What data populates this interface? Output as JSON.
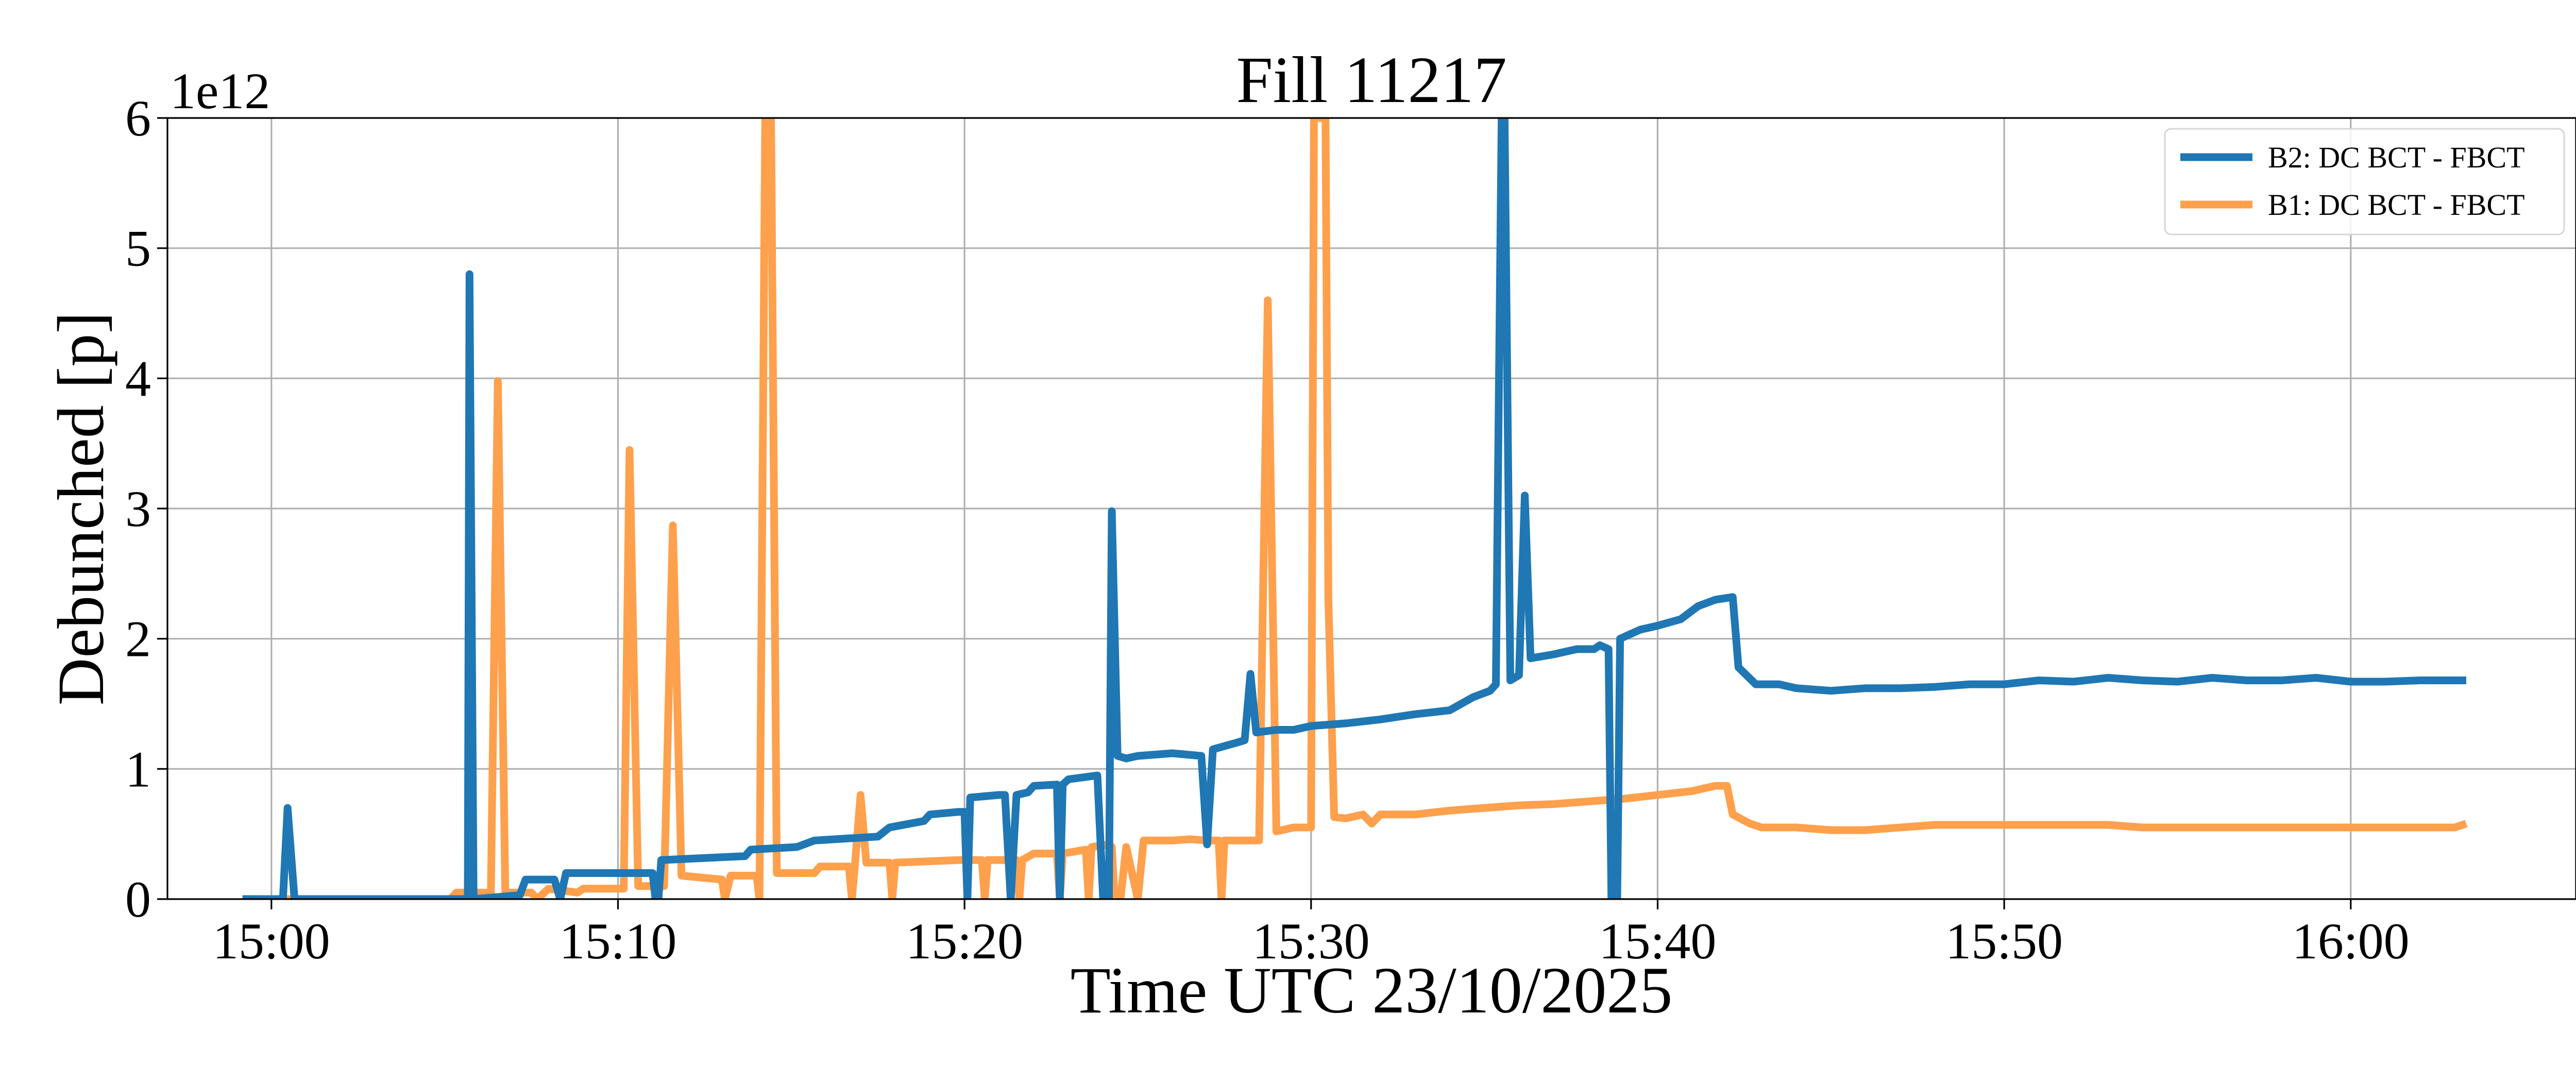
{
  "chart_data": {
    "type": "line",
    "title": "Fill 11217",
    "xlabel": "Time UTC 23/10/2025",
    "ylabel": "Debunched [p]",
    "y_offset_label": "1e12",
    "y_scale_unit": 1000000000000.0,
    "xlim": [
      "14:57:00",
      "16:06:30"
    ],
    "ylim": [
      0,
      6
    ],
    "x_ticks": [
      "15:00",
      "15:10",
      "15:20",
      "15:30",
      "15:40",
      "15:50",
      "16:00"
    ],
    "y_ticks": [
      0,
      1,
      2,
      3,
      4,
      5,
      6
    ],
    "grid": true,
    "legend_position": "top-right",
    "series": [
      {
        "name": "B2: DC BCT - FBCT",
        "color": "#1f77b4",
        "points": [
          [
            "14:59:10",
            0
          ],
          [
            "15:00:20",
            0
          ],
          [
            "15:00:28",
            0.7
          ],
          [
            "15:00:40",
            0
          ],
          [
            "15:05:15",
            0
          ],
          [
            "15:05:40",
            0
          ],
          [
            "15:05:43",
            4.8
          ],
          [
            "15:05:50",
            0
          ],
          [
            "15:07:10",
            0.03
          ],
          [
            "15:07:20",
            0.15
          ],
          [
            "15:08:10",
            0.15
          ],
          [
            "15:08:20",
            0
          ],
          [
            "15:08:30",
            0.2
          ],
          [
            "15:11:00",
            0.2
          ],
          [
            "15:11:05",
            0
          ],
          [
            "15:11:10",
            0
          ],
          [
            "15:11:15",
            0.3
          ],
          [
            "15:13:40",
            0.33
          ],
          [
            "15:13:50",
            0.38
          ],
          [
            "15:15:10",
            0.4
          ],
          [
            "15:15:40",
            0.45
          ],
          [
            "15:17:30",
            0.48
          ],
          [
            "15:17:50",
            0.55
          ],
          [
            "15:18:50",
            0.6
          ],
          [
            "15:19:00",
            0.65
          ],
          [
            "15:19:50",
            0.67
          ],
          [
            "15:20:00",
            0.67
          ],
          [
            "15:20:05",
            0
          ],
          [
            "15:20:10",
            0.78
          ],
          [
            "15:21:00",
            0.8
          ],
          [
            "15:21:10",
            0.8
          ],
          [
            "15:21:20",
            0
          ],
          [
            "15:21:30",
            0.8
          ],
          [
            "15:21:50",
            0.82
          ],
          [
            "15:22:00",
            0.87
          ],
          [
            "15:22:40",
            0.88
          ],
          [
            "15:22:45",
            0
          ],
          [
            "15:22:50",
            0.88
          ],
          [
            "15:23:00",
            0.92
          ],
          [
            "15:23:50",
            0.95
          ],
          [
            "15:24:00",
            0
          ],
          [
            "15:24:10",
            0
          ],
          [
            "15:24:15",
            2.98
          ],
          [
            "15:24:25",
            1.1
          ],
          [
            "15:24:40",
            1.08
          ],
          [
            "15:25:00",
            1.1
          ],
          [
            "15:26:00",
            1.12
          ],
          [
            "15:26:50",
            1.1
          ],
          [
            "15:27:00",
            0.42
          ],
          [
            "15:27:10",
            1.15
          ],
          [
            "15:27:50",
            1.2
          ],
          [
            "15:28:05",
            1.22
          ],
          [
            "15:28:15",
            1.73
          ],
          [
            "15:28:25",
            1.28
          ],
          [
            "15:29:00",
            1.3
          ],
          [
            "15:29:30",
            1.3
          ],
          [
            "15:30:00",
            1.33
          ],
          [
            "15:31:00",
            1.35
          ],
          [
            "15:32:00",
            1.38
          ],
          [
            "15:33:00",
            1.42
          ],
          [
            "15:34:00",
            1.45
          ],
          [
            "15:34:40",
            1.55
          ],
          [
            "15:35:10",
            1.6
          ],
          [
            "15:35:20",
            1.65
          ],
          [
            "15:35:30",
            6
          ],
          [
            "15:35:35",
            6
          ],
          [
            "15:35:45",
            1.68
          ],
          [
            "15:36:00",
            1.72
          ],
          [
            "15:36:10",
            3.1
          ],
          [
            "15:36:20",
            1.85
          ],
          [
            "15:37:00",
            1.88
          ],
          [
            "15:37:40",
            1.92
          ],
          [
            "15:38:10",
            1.92
          ],
          [
            "15:38:20",
            1.95
          ],
          [
            "15:38:35",
            1.92
          ],
          [
            "15:38:40",
            0
          ],
          [
            "15:38:50",
            0
          ],
          [
            "15:38:55",
            2.0
          ],
          [
            "15:39:30",
            2.07
          ],
          [
            "15:40:00",
            2.1
          ],
          [
            "15:40:40",
            2.15
          ],
          [
            "15:41:10",
            2.25
          ],
          [
            "15:41:40",
            2.3
          ],
          [
            "15:42:10",
            2.32
          ],
          [
            "15:42:20",
            1.78
          ],
          [
            "15:42:50",
            1.65
          ],
          [
            "15:43:30",
            1.65
          ],
          [
            "15:44:00",
            1.62
          ],
          [
            "15:45:00",
            1.6
          ],
          [
            "15:46:00",
            1.62
          ],
          [
            "15:47:00",
            1.62
          ],
          [
            "15:48:00",
            1.63
          ],
          [
            "15:49:00",
            1.65
          ],
          [
            "15:50:00",
            1.65
          ],
          [
            "15:51:00",
            1.68
          ],
          [
            "15:52:00",
            1.67
          ],
          [
            "15:53:00",
            1.7
          ],
          [
            "15:54:00",
            1.68
          ],
          [
            "15:55:00",
            1.67
          ],
          [
            "15:56:00",
            1.7
          ],
          [
            "15:57:00",
            1.68
          ],
          [
            "15:58:00",
            1.68
          ],
          [
            "15:59:00",
            1.7
          ],
          [
            "16:00:00",
            1.67
          ],
          [
            "16:01:00",
            1.67
          ],
          [
            "16:02:00",
            1.68
          ],
          [
            "16:03:00",
            1.68
          ],
          [
            "16:03:20",
            1.68
          ]
        ]
      },
      {
        "name": "B1: DC BCT - FBCT",
        "color": "#ffa04d",
        "points": [
          [
            "14:59:10",
            0
          ],
          [
            "15:05:10",
            0
          ],
          [
            "15:05:20",
            0.05
          ],
          [
            "15:06:20",
            0.05
          ],
          [
            "15:06:32",
            3.98
          ],
          [
            "15:06:45",
            0.05
          ],
          [
            "15:07:30",
            0.05
          ],
          [
            "15:07:40",
            0
          ],
          [
            "15:08:00",
            0.08
          ],
          [
            "15:08:50",
            0.05
          ],
          [
            "15:09:00",
            0.08
          ],
          [
            "15:10:10",
            0.08
          ],
          [
            "15:10:20",
            3.45
          ],
          [
            "15:10:35",
            0.1
          ],
          [
            "15:11:20",
            0.1
          ],
          [
            "15:11:35",
            2.87
          ],
          [
            "15:11:50",
            0.18
          ],
          [
            "15:13:00",
            0.15
          ],
          [
            "15:13:05",
            0
          ],
          [
            "15:13:15",
            0.18
          ],
          [
            "15:14:00",
            0.18
          ],
          [
            "15:14:05",
            0
          ],
          [
            "15:14:15",
            6
          ],
          [
            "15:14:25",
            6
          ],
          [
            "15:14:35",
            0.2
          ],
          [
            "15:15:40",
            0.2
          ],
          [
            "15:15:50",
            0.25
          ],
          [
            "15:16:40",
            0.25
          ],
          [
            "15:16:45",
            0
          ],
          [
            "15:16:50",
            0.25
          ],
          [
            "15:17:00",
            0.8
          ],
          [
            "15:17:10",
            0.28
          ],
          [
            "15:17:50",
            0.28
          ],
          [
            "15:17:55",
            0
          ],
          [
            "15:18:00",
            0.28
          ],
          [
            "15:19:50",
            0.3
          ],
          [
            "15:20:30",
            0.3
          ],
          [
            "15:20:35",
            0
          ],
          [
            "15:20:40",
            0.3
          ],
          [
            "15:21:30",
            0.3
          ],
          [
            "15:21:35",
            0
          ],
          [
            "15:21:40",
            0.3
          ],
          [
            "15:22:00",
            0.35
          ],
          [
            "15:22:40",
            0.35
          ],
          [
            "15:22:45",
            0
          ],
          [
            "15:22:50",
            0.35
          ],
          [
            "15:23:30",
            0.38
          ],
          [
            "15:23:35",
            0
          ],
          [
            "15:23:40",
            0.4
          ],
          [
            "15:24:10",
            0.42
          ],
          [
            "15:24:15",
            0.4
          ],
          [
            "15:24:20",
            0
          ],
          [
            "15:24:30",
            0
          ],
          [
            "15:24:40",
            0.4
          ],
          [
            "15:25:00",
            0
          ],
          [
            "15:25:10",
            0.45
          ],
          [
            "15:26:00",
            0.45
          ],
          [
            "15:26:30",
            0.46
          ],
          [
            "15:27:00",
            0.45
          ],
          [
            "15:27:20",
            0.45
          ],
          [
            "15:27:25",
            0
          ],
          [
            "15:27:30",
            0.45
          ],
          [
            "15:28:30",
            0.45
          ],
          [
            "15:28:45",
            4.6
          ],
          [
            "15:29:00",
            0.52
          ],
          [
            "15:29:30",
            0.55
          ],
          [
            "15:30:00",
            0.55
          ],
          [
            "15:30:05",
            6
          ],
          [
            "15:30:25",
            6
          ],
          [
            "15:30:30",
            2.3
          ],
          [
            "15:30:40",
            0.63
          ],
          [
            "15:31:00",
            0.62
          ],
          [
            "15:31:30",
            0.65
          ],
          [
            "15:31:45",
            0.58
          ],
          [
            "15:32:00",
            0.65
          ],
          [
            "15:33:00",
            0.65
          ],
          [
            "15:34:00",
            0.68
          ],
          [
            "15:35:00",
            0.7
          ],
          [
            "15:36:00",
            0.72
          ],
          [
            "15:37:00",
            0.73
          ],
          [
            "15:38:00",
            0.75
          ],
          [
            "15:39:00",
            0.77
          ],
          [
            "15:40:00",
            0.8
          ],
          [
            "15:41:00",
            0.83
          ],
          [
            "15:41:40",
            0.87
          ],
          [
            "15:42:00",
            0.87
          ],
          [
            "15:42:10",
            0.65
          ],
          [
            "15:42:40",
            0.58
          ],
          [
            "15:43:00",
            0.55
          ],
          [
            "15:44:00",
            0.55
          ],
          [
            "15:45:00",
            0.53
          ],
          [
            "15:46:00",
            0.53
          ],
          [
            "15:47:00",
            0.55
          ],
          [
            "15:48:00",
            0.57
          ],
          [
            "15:49:00",
            0.57
          ],
          [
            "15:50:00",
            0.57
          ],
          [
            "15:51:00",
            0.57
          ],
          [
            "15:52:00",
            0.57
          ],
          [
            "15:53:00",
            0.57
          ],
          [
            "15:54:00",
            0.55
          ],
          [
            "15:55:00",
            0.55
          ],
          [
            "15:56:00",
            0.55
          ],
          [
            "15:57:00",
            0.55
          ],
          [
            "15:58:00",
            0.55
          ],
          [
            "15:59:00",
            0.55
          ],
          [
            "16:00:00",
            0.55
          ],
          [
            "16:01:00",
            0.55
          ],
          [
            "16:02:00",
            0.55
          ],
          [
            "16:03:00",
            0.55
          ],
          [
            "16:03:20",
            0.58
          ]
        ]
      }
    ]
  }
}
